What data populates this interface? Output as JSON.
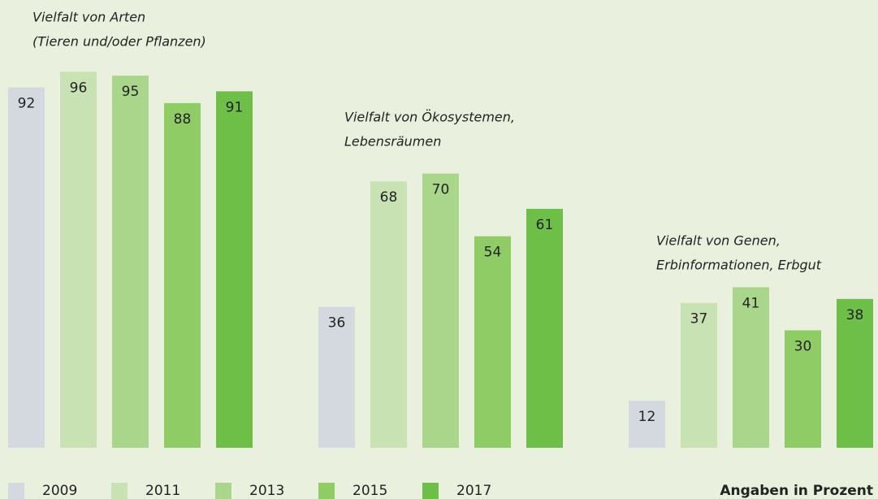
{
  "chart_data": {
    "type": "bar",
    "categories": [
      [
        "Vielfalt von Arten",
        "(Tieren und/oder Pflanzen)"
      ],
      [
        "Vielfalt von Ökosystemen,",
        "Lebensräumen"
      ],
      [
        "Vielfalt von Genen,",
        "Erbinformationen, Erbgut"
      ]
    ],
    "series": [
      {
        "name": "2009",
        "color": "#d3d9de",
        "values": [
          92,
          36,
          12
        ]
      },
      {
        "name": "2011",
        "color": "#c9e2b3",
        "values": [
          96,
          68,
          37
        ]
      },
      {
        "name": "2013",
        "color": "#a9d68a",
        "values": [
          95,
          70,
          41
        ]
      },
      {
        "name": "2015",
        "color": "#8fcc66",
        "values": [
          88,
          54,
          30
        ]
      },
      {
        "name": "2017",
        "color": "#6dbf47",
        "values": [
          91,
          61,
          38
        ]
      }
    ],
    "note": "Angaben in Prozent"
  }
}
